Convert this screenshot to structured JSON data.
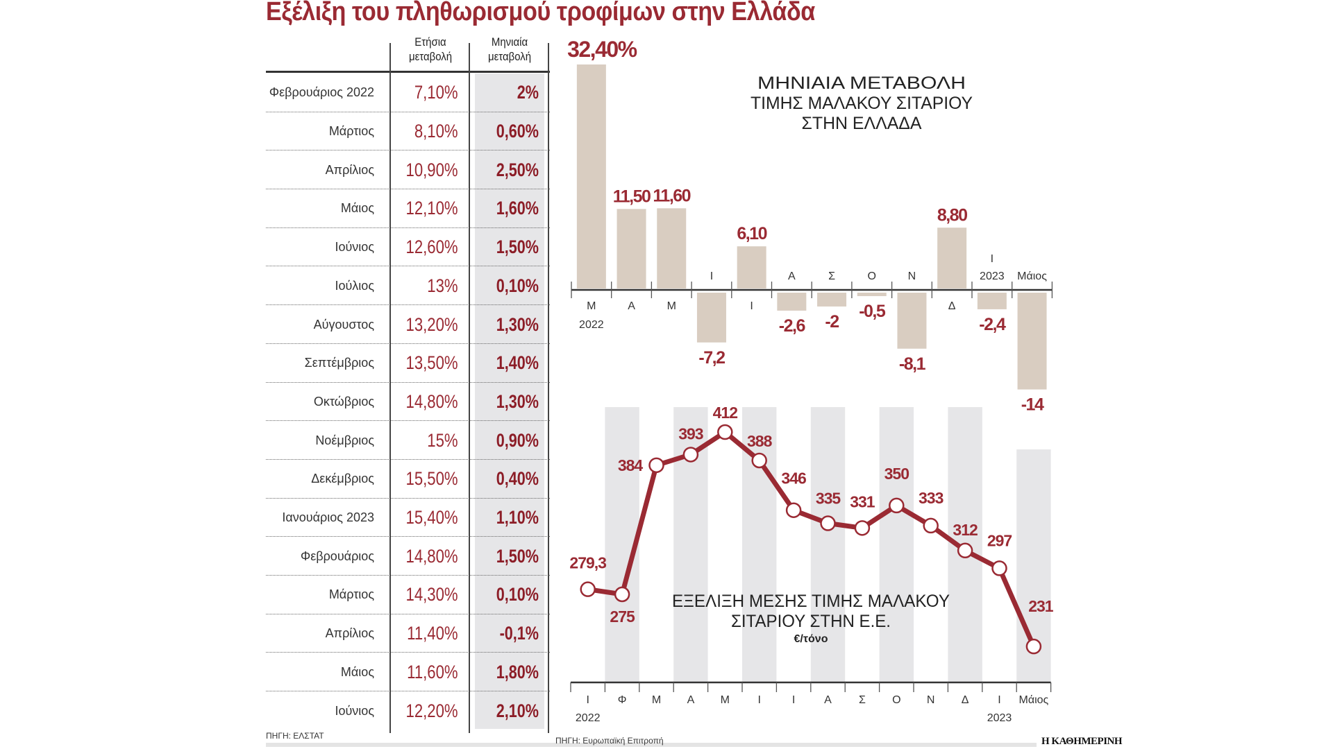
{
  "title": "Εξέλιξη του πληθωρισμού τροφίμων στην Ελλάδα",
  "table": {
    "headers": {
      "annual": [
        "Ετήσια",
        "μεταβολή"
      ],
      "monthly": [
        "Μηνιαία",
        "μεταβολή"
      ]
    },
    "rows": [
      {
        "month": "Φεβρουάριος 2022",
        "annual": "7,10%",
        "monthly": "2%"
      },
      {
        "month": "Μάρτιος",
        "annual": "8,10%",
        "monthly": "0,60%"
      },
      {
        "month": "Απρίλιος",
        "annual": "10,90%",
        "monthly": "2,50%"
      },
      {
        "month": "Μάιος",
        "annual": "12,10%",
        "monthly": "1,60%"
      },
      {
        "month": "Ιούνιος",
        "annual": "12,60%",
        "monthly": "1,50%"
      },
      {
        "month": "Ιούλιος",
        "annual": "13%",
        "monthly": "0,10%"
      },
      {
        "month": "Αύγουστος",
        "annual": "13,20%",
        "monthly": "1,30%"
      },
      {
        "month": "Σεπτέμβριος",
        "annual": "13,50%",
        "monthly": "1,40%"
      },
      {
        "month": "Οκτώβριος",
        "annual": "14,80%",
        "monthly": "1,30%"
      },
      {
        "month": "Νοέμβριος",
        "annual": "15%",
        "monthly": "0,90%"
      },
      {
        "month": "Δεκέμβριος",
        "annual": "15,50%",
        "monthly": "0,40%"
      },
      {
        "month": "Ιανουάριος 2023",
        "annual": "15,40%",
        "monthly": "1,10%"
      },
      {
        "month": "Φεβρουάριος",
        "annual": "14,80%",
        "monthly": "1,50%"
      },
      {
        "month": "Μάρτιος",
        "annual": "14,30%",
        "monthly": "0,10%"
      },
      {
        "month": "Απρίλιος",
        "annual": "11,40%",
        "monthly": "-0,1%"
      },
      {
        "month": "Μάιος",
        "annual": "11,60%",
        "monthly": "1,80%"
      },
      {
        "month": "Ιούνιος",
        "annual": "12,20%",
        "monthly": "2,10%"
      }
    ],
    "source": "ΠΗΓΗ: ΕΛΣΤΑΤ"
  },
  "chart_data": [
    {
      "type": "bar",
      "title": "ΜΗΝΙΑΙΑ ΜΕΤΑΒΟΛΗ ΤΙΜΗΣ ΜΑΛΑΚΟΥ ΣΙΤΑΡΙΟΥ ΣΤΗΝ ΕΛΛΑΔΑ",
      "title_lines": [
        "ΜΗΝΙΑΙΑ ΜΕΤΑΒΟΛΗ",
        "ΤΙΜΗΣ ΜΑΛΑΚΟΥ ΣΙΤΑΡΙΟΥ",
        "ΣΤΗΝ ΕΛΛΑΔΑ"
      ],
      "categories": [
        "Μ",
        "Α",
        "Μ",
        "Ι",
        "Ι",
        "Α",
        "Σ",
        "Ο",
        "Ν",
        "Δ",
        "Ι",
        "Μάιος"
      ],
      "year_labels": [
        {
          "index": 0,
          "label": "2022"
        },
        {
          "index": 10,
          "label": "2023"
        }
      ],
      "values": [
        32.4,
        11.5,
        11.6,
        -7.2,
        6.1,
        -2.6,
        -2,
        -0.5,
        -8.1,
        8.8,
        -2.4,
        -14
      ],
      "value_labels": [
        "32,40%",
        "11,50",
        "11,60",
        "-7,2",
        "6,10",
        "-2,6",
        "-2",
        "-0,5",
        "-8,1",
        "8,80",
        "-2,4",
        "-14"
      ],
      "xlabel": "",
      "ylabel": "%",
      "ylim": [
        -14,
        32.4
      ],
      "grid": false,
      "bar_color": "#d9cdc1",
      "label_color": "#9a2a33"
    },
    {
      "type": "line",
      "title": "ΕΞΕΛΙΞΗ ΜΕΣΗΣ ΤΙΜΗΣ ΜΑΛΑΚΟΥ ΣΙΤΑΡΙΟΥ ΣΤΗΝ Ε.Ε.",
      "title_lines": [
        "ΕΞΕΛΙΞΗ ΜΕΣΗΣ ΤΙΜΗΣ ΜΑΛΑΚΟΥ",
        "ΣΙΤΑΡΙΟΥ ΣΤΗΝ Ε.Ε."
      ],
      "unit": "€/τόνο",
      "x": [
        "Ι",
        "Φ",
        "Μ",
        "Α",
        "Μ",
        "Ι",
        "Ι",
        "Α",
        "Σ",
        "Ο",
        "Ν",
        "Δ",
        "Ι",
        "Μάιος"
      ],
      "year_labels": [
        {
          "index": 0,
          "label": "2022"
        },
        {
          "index": 12,
          "label": "2023"
        }
      ],
      "values": [
        279.3,
        275,
        384,
        393,
        412,
        388,
        346,
        335,
        331,
        350,
        333,
        312,
        297,
        231
      ],
      "value_labels": [
        "279,3",
        "275",
        "384",
        "393",
        "412",
        "388",
        "346",
        "335",
        "331",
        "350",
        "333",
        "312",
        "297",
        "231"
      ],
      "xlabel": "",
      "ylabel": "€/τόνο",
      "ylim": [
        231,
        412
      ],
      "grid": false,
      "line_color": "#9a2a33",
      "stripe_color": "#e6e6e8",
      "source": "ΠΗΓΗ: Ευρωπαϊκή Επιτροπή"
    }
  ],
  "brand": "Η ΚΑΘΗΜΕΡΙΝΗ"
}
